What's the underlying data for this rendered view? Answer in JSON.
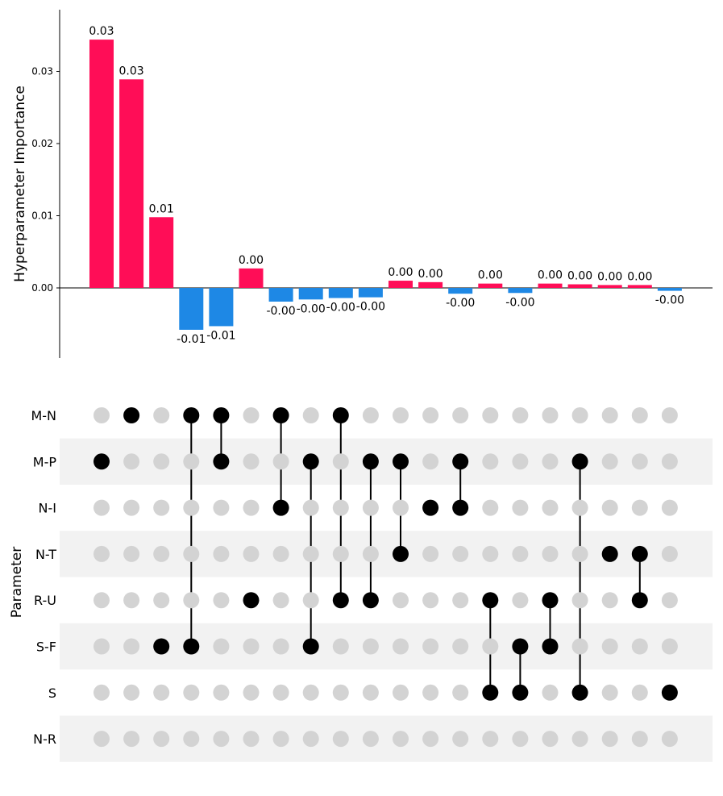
{
  "chart_data": [
    {
      "type": "bar",
      "ylabel": "Hyperparameter Importance",
      "yticks": [
        0.0,
        0.01,
        0.02,
        0.03
      ],
      "ytick_labels": [
        "0.00",
        "0.01",
        "0.02",
        "0.03"
      ],
      "ylim": [
        -0.0098,
        0.0385
      ],
      "values": [
        0.0344,
        0.0289,
        0.0098,
        -0.0058,
        -0.0053,
        0.0027,
        -0.0019,
        -0.0016,
        -0.0014,
        -0.0013,
        0.001,
        0.0008,
        -0.0008,
        0.0006,
        -0.0007,
        0.0006,
        0.0005,
        0.0004,
        0.0004,
        -0.0004
      ],
      "value_labels": [
        "0.03",
        "0.03",
        "0.01",
        "-0.01",
        "-0.01",
        "0.00",
        "-0.00",
        "-0.00",
        "-0.00",
        "-0.00",
        "0.00",
        "0.00",
        "-0.00",
        "0.00",
        "-0.00",
        "0.00",
        "0.00",
        "0.00",
        "0.00",
        "-0.00"
      ],
      "positive_color": "#ff0d57",
      "negative_color": "#1e88e5"
    },
    {
      "type": "matrix",
      "ylabel": "Parameter",
      "parameters": [
        "M-N",
        "M-P",
        "N-I",
        "N-T",
        "R-U",
        "S-F",
        "S",
        "N-R"
      ],
      "combinations": [
        [
          "M-P"
        ],
        [
          "M-N"
        ],
        [
          "S-F"
        ],
        [
          "M-N",
          "S-F"
        ],
        [
          "M-N",
          "M-P"
        ],
        [
          "R-U"
        ],
        [
          "M-N",
          "N-I"
        ],
        [
          "M-P",
          "S-F"
        ],
        [
          "M-N",
          "R-U"
        ],
        [
          "M-P",
          "R-U"
        ],
        [
          "M-P",
          "N-T"
        ],
        [
          "N-I"
        ],
        [
          "M-P",
          "N-I"
        ],
        [
          "R-U",
          "S"
        ],
        [
          "S-F",
          "S"
        ],
        [
          "R-U",
          "S-F"
        ],
        [
          "M-P",
          "S"
        ],
        [
          "N-T"
        ],
        [
          "N-T",
          "R-U"
        ],
        [
          "S"
        ]
      ],
      "active_color": "#000000",
      "inactive_color": "#d3d3d3",
      "stripe_color": "#f2f2f2"
    }
  ]
}
